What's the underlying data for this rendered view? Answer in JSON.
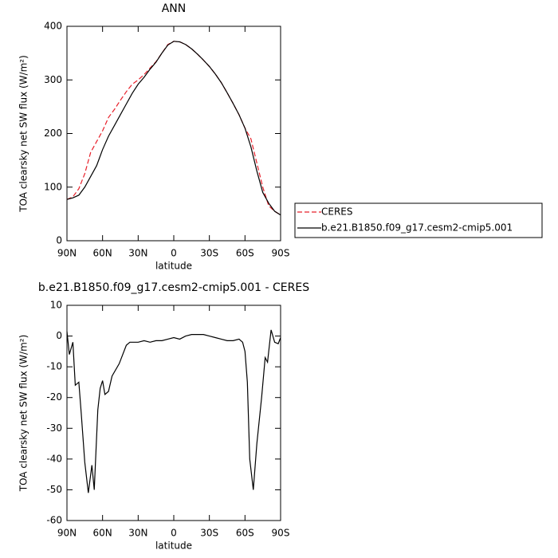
{
  "chart_data": [
    {
      "type": "line",
      "title": "ANN",
      "xlabel": "latitude",
      "ylabel": "TOA clearsky net SW flux (W/m²)",
      "x": [
        90,
        85,
        80,
        75,
        70,
        65,
        60,
        55,
        50,
        45,
        40,
        35,
        30,
        25,
        20,
        15,
        10,
        5,
        0,
        -5,
        -10,
        -15,
        -20,
        -25,
        -30,
        -35,
        -40,
        -45,
        -50,
        -55,
        -60,
        -65,
        -70,
        -75,
        -80,
        -85,
        -90
      ],
      "series": [
        {
          "name": "CERES",
          "color": "#e8202a",
          "dashed": true,
          "values": [
            77,
            82,
            97,
            125,
            165,
            185,
            205,
            230,
            245,
            262,
            278,
            292,
            300,
            310,
            322,
            334,
            350,
            366,
            372,
            371,
            366,
            358,
            348,
            337,
            325,
            311,
            295,
            276,
            256,
            235,
            210,
            190,
            145,
            100,
            65,
            55,
            48
          ]
        },
        {
          "name": "b.e21.B1850.f09_g17.cesm2-cmip5.001",
          "color": "#000000",
          "dashed": false,
          "values": [
            77,
            80,
            85,
            100,
            120,
            140,
            170,
            195,
            215,
            235,
            255,
            275,
            292,
            305,
            320,
            333,
            350,
            365,
            372,
            371,
            366,
            358,
            348,
            337,
            325,
            311,
            295,
            276,
            256,
            235,
            210,
            175,
            130,
            90,
            70,
            55,
            48
          ]
        }
      ],
      "xlim": [
        90,
        -90
      ],
      "xticks": [
        {
          "value": 90,
          "label": "90N"
        },
        {
          "value": 60,
          "label": "60N"
        },
        {
          "value": 30,
          "label": "30N"
        },
        0,
        {
          "value": -30,
          "label": "30S"
        },
        {
          "value": -60,
          "label": "60S"
        },
        {
          "value": -90,
          "label": "90S"
        }
      ],
      "ylim": [
        0,
        400
      ],
      "yticks": [
        0,
        100,
        200,
        300,
        400
      ],
      "legend": "right"
    },
    {
      "type": "line",
      "title": "b.e21.B1850.f09_g17.cesm2-cmip5.001 - CERES",
      "xlabel": "latitude",
      "ylabel": "TOA clearsky net SW flux (W/m²)",
      "x": [
        90,
        88,
        85,
        83,
        80,
        78,
        75,
        72,
        69,
        67,
        64,
        62,
        60,
        58,
        55,
        52,
        46,
        40,
        37,
        30,
        25,
        20,
        15,
        10,
        5,
        0,
        -5,
        -10,
        -15,
        -20,
        -25,
        -30,
        -35,
        -40,
        -45,
        -50,
        -55,
        -58,
        -60,
        -62,
        -64,
        -67,
        -70,
        -74,
        -77,
        -79,
        -82,
        -85,
        -88,
        -90
      ],
      "values": [
        1.5,
        -6,
        -2,
        -16,
        -15,
        -25,
        -41,
        -51,
        -42,
        -50,
        -24,
        -17,
        -14.5,
        -19,
        -18,
        -13,
        -9,
        -3,
        -2,
        -2,
        -1.5,
        -2,
        -1.5,
        -1.5,
        -1,
        -0.5,
        -1,
        0,
        0.5,
        0.5,
        0.5,
        0,
        -0.5,
        -1,
        -1.5,
        -1.5,
        -1,
        -2,
        -5,
        -15,
        -40,
        -50,
        -35,
        -20,
        -7,
        -8.5,
        2,
        -2,
        -2.5,
        -0.5
      ],
      "color": "#000000",
      "xlim": [
        90,
        -90
      ],
      "xticks": [
        {
          "value": 90,
          "label": "90N"
        },
        {
          "value": 60,
          "label": "60N"
        },
        {
          "value": 30,
          "label": "30N"
        },
        0,
        {
          "value": -30,
          "label": "30S"
        },
        {
          "value": -60,
          "label": "60S"
        },
        {
          "value": -90,
          "label": "90S"
        }
      ],
      "ylim": [
        -60,
        10
      ],
      "yticks": [
        -60,
        -50,
        -40,
        -30,
        -20,
        -10,
        0,
        10
      ]
    }
  ]
}
